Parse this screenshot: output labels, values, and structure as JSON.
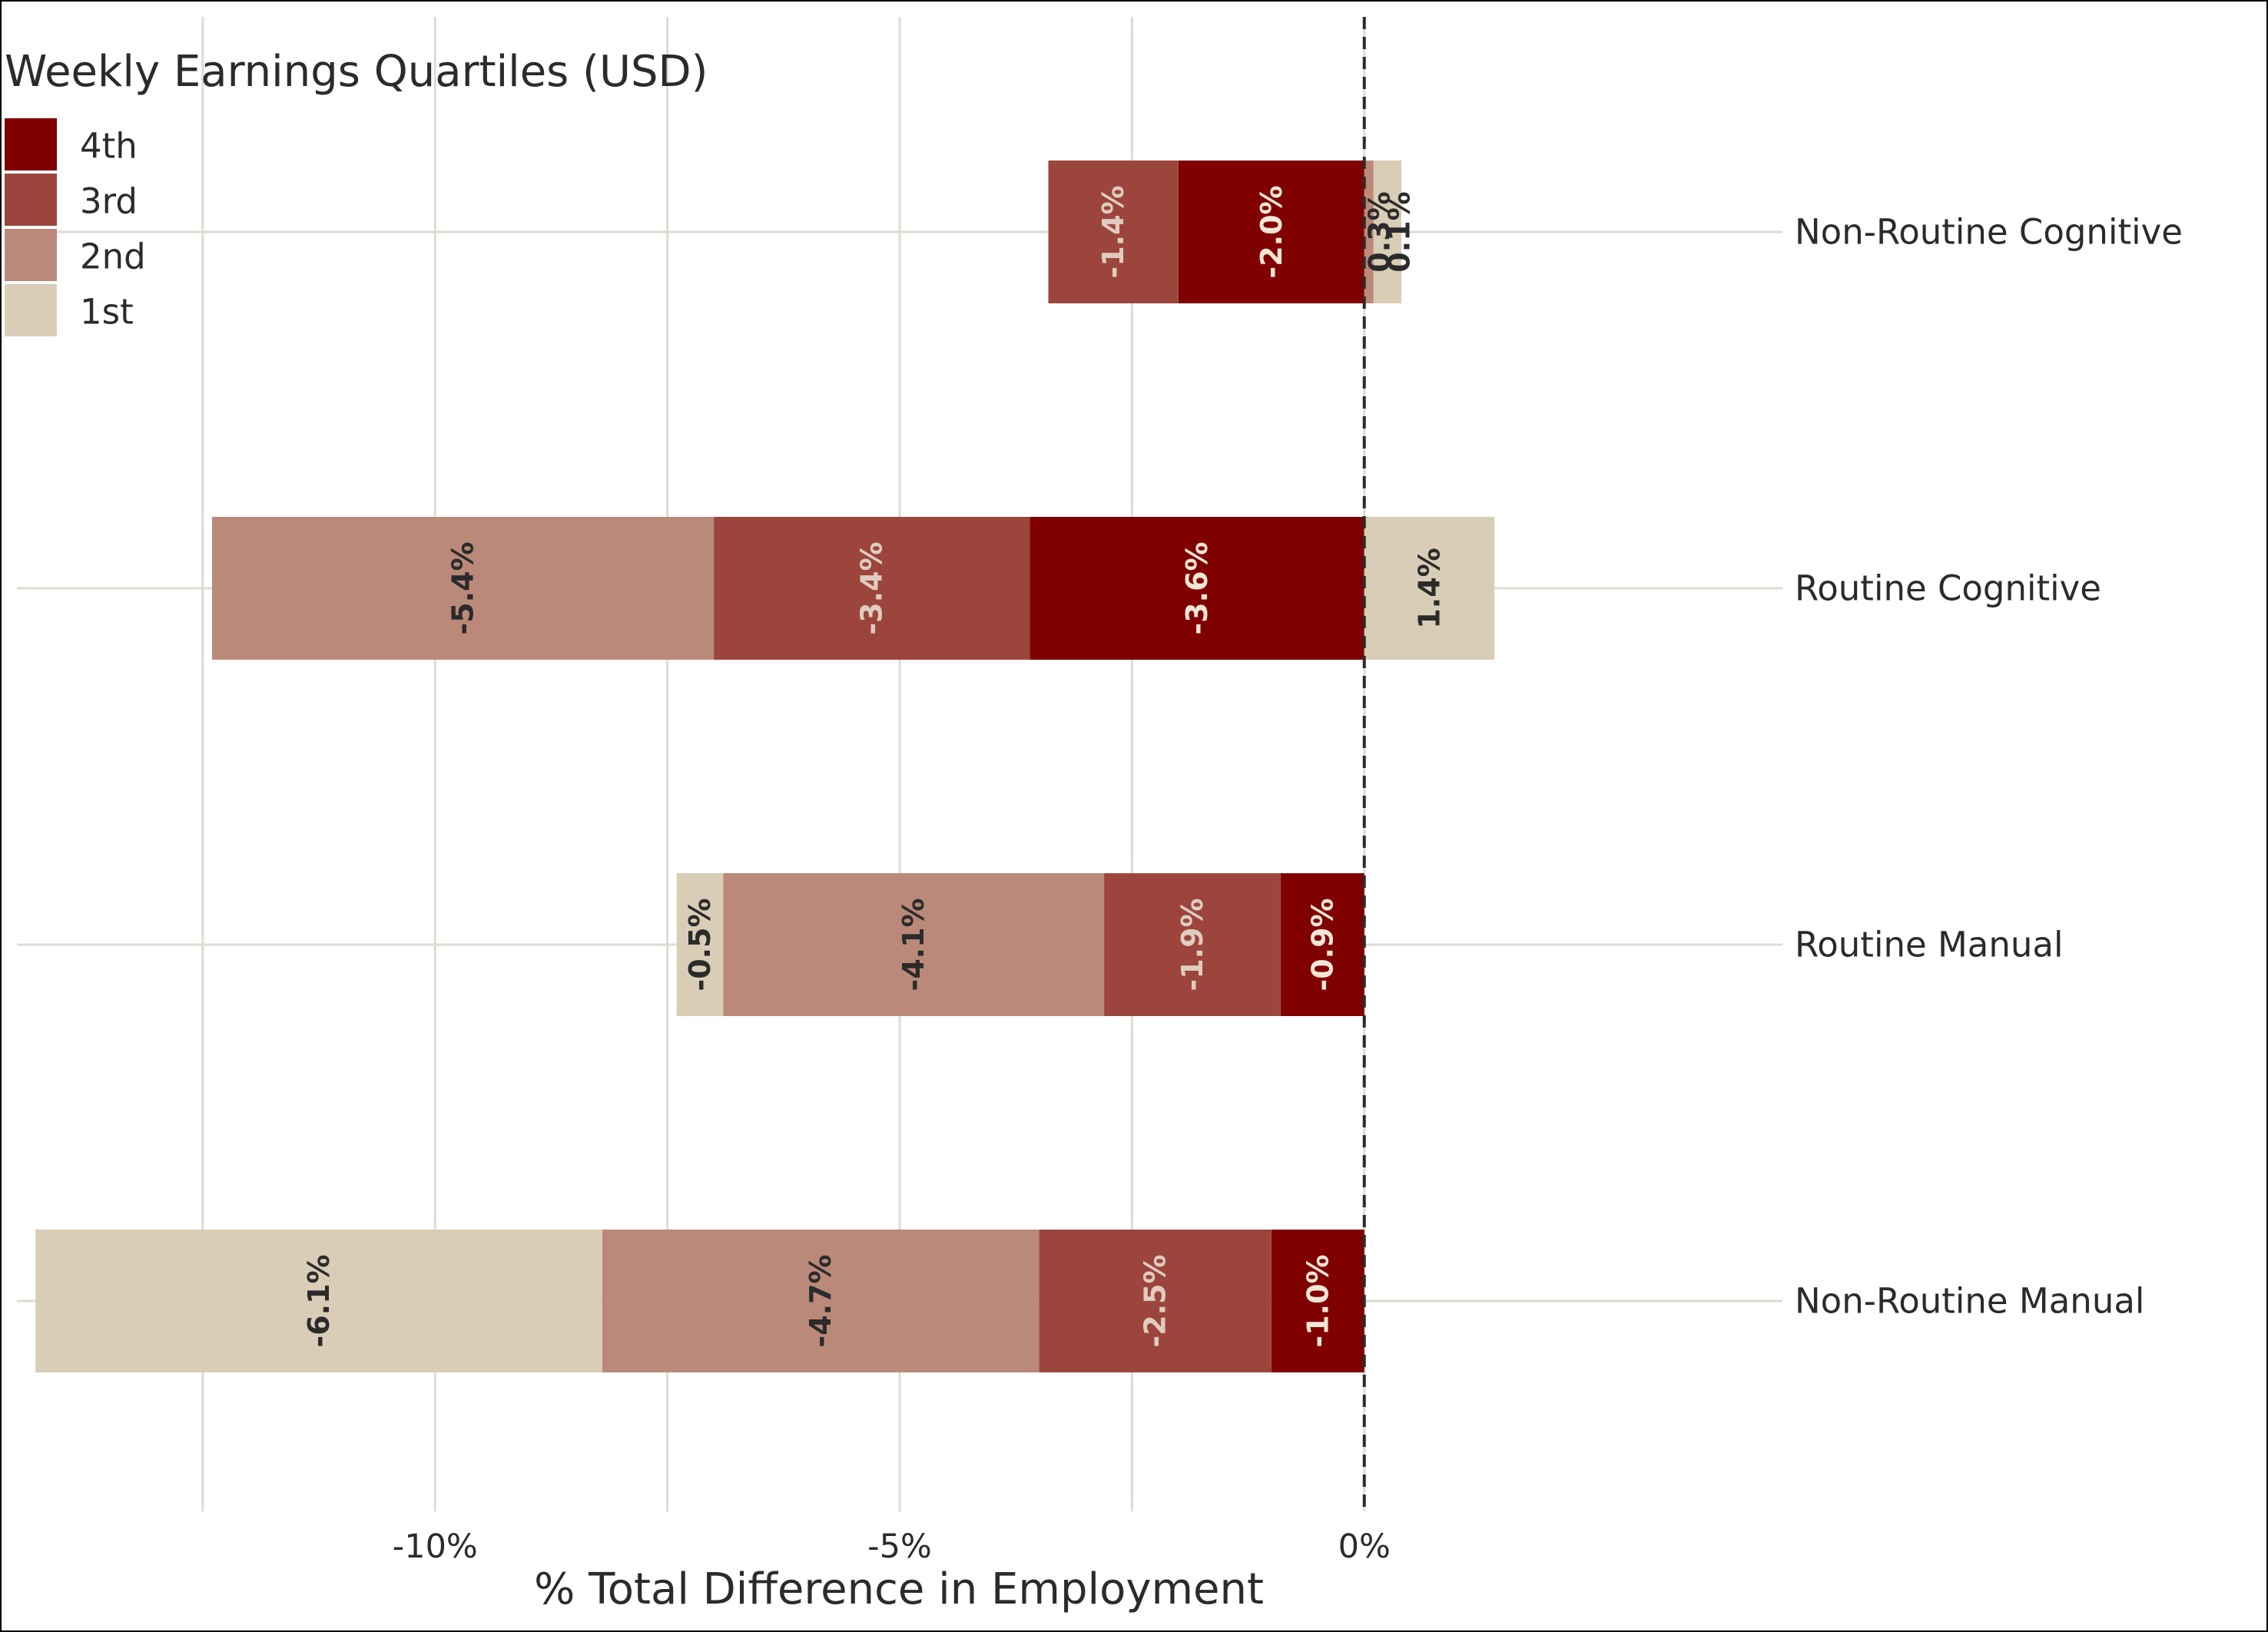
{
  "chart_data": {
    "type": "bar",
    "orientation": "horizontal",
    "stacked": true,
    "xlabel": "% Total Difference in Employment",
    "x_ticks": [
      "-10%",
      "-5%",
      "0%"
    ],
    "x_tick_values": [
      -10,
      -5,
      0
    ],
    "xlim": [
      -14.5,
      4.5
    ],
    "reference_line": 0,
    "grid": true,
    "categories": [
      "Non-Routine Cognitive",
      "Routine Cognitive",
      "Routine Manual",
      "Non-Routine Manual"
    ],
    "legend": {
      "title": "Weekly Earnings Quartiles (USD)",
      "position": "top-left",
      "items": [
        "4th",
        "3rd",
        "2nd",
        "1st"
      ]
    },
    "series": [
      {
        "name": "4th",
        "color": "#800000",
        "label_color": "#f2e6d6",
        "values": [
          -2.0,
          -3.6,
          -0.9,
          -1.0
        ],
        "labels": [
          "-2.0%",
          "-3.6%",
          "-0.9%",
          "-1.0%"
        ]
      },
      {
        "name": "3rd",
        "color": "#9c453d",
        "label_color": "#e0ccc0",
        "values": [
          -1.4,
          -3.4,
          -1.9,
          -2.5
        ],
        "labels": [
          "-1.4%",
          "-3.4%",
          "-1.9%",
          "-2.5%"
        ]
      },
      {
        "name": "2nd",
        "color": "#bb8979",
        "label_color": "#2b2b2b",
        "values": [
          0.1,
          -5.4,
          -4.1,
          -4.7
        ],
        "labels": [
          "0.1%",
          "-5.4%",
          "-4.1%",
          "-4.7%"
        ]
      },
      {
        "name": "1st",
        "color": "#d9cdb7",
        "label_color": "#2b2b2b",
        "values": [
          0.3,
          1.4,
          -0.5,
          -6.1
        ],
        "labels": [
          "0.3%",
          "1.4%",
          "-0.5%",
          "-6.1%"
        ]
      }
    ]
  }
}
